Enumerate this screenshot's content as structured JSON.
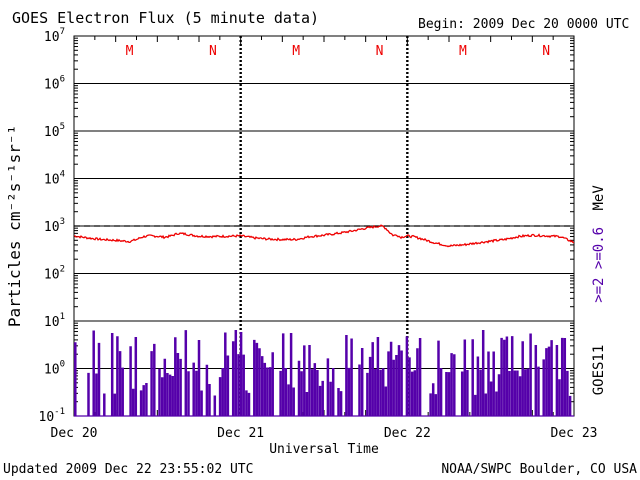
{
  "chart_data": {
    "type": "line",
    "title": "GOES Electron Flux (5 minute data)",
    "begin_label": "Begin: 2009 Dec 20 0000 UTC",
    "xlabel": "Universal Time",
    "ylabel": "Particles cm⁻²s⁻¹sr⁻¹",
    "xlim": [
      "2009-12-20 00:00",
      "2009-12-23 00:00"
    ],
    "x_tick_labels": [
      "Dec 20",
      "Dec 21",
      "Dec 22",
      "Dec 23"
    ],
    "y_scale": "log",
    "ylim": [
      0.1,
      10000000
    ],
    "y_tick_labels": [
      {
        "base": "10",
        "exp": "-1"
      },
      {
        "base": "10",
        "exp": "0"
      },
      {
        "base": "10",
        "exp": "1"
      },
      {
        "base": "10",
        "exp": "2"
      },
      {
        "base": "10",
        "exp": "3"
      },
      {
        "base": "10",
        "exp": "4"
      },
      {
        "base": "10",
        "exp": "5"
      },
      {
        "base": "10",
        "exp": "6"
      },
      {
        "base": "10",
        "exp": "7"
      }
    ],
    "grid": "horizontal at each decade",
    "threshold": {
      "value": 1000,
      "style": "dashed"
    },
    "right_labels": {
      "satellite": "GOES11",
      "energy_prefix": ">=2 >=0.6",
      "energy_unit": "MeV"
    },
    "local_midnight_markers": [
      {
        "label": "M",
        "x": "2009-12-20 08:00"
      },
      {
        "label": "N",
        "x": "2009-12-20 20:00"
      },
      {
        "label": "M",
        "x": "2009-12-21 08:00"
      },
      {
        "label": "N",
        "x": "2009-12-21 20:00"
      },
      {
        "label": "M",
        "x": "2009-12-22 08:00"
      },
      {
        "label": "N",
        "x": "2009-12-22 20:00"
      }
    ],
    "series": [
      {
        "energy": ">=0.6 MeV",
        "color": "#ee0000",
        "x_hours": [
          0,
          2,
          4,
          6,
          8,
          9,
          10,
          11,
          12,
          13,
          14,
          15,
          16,
          17,
          18,
          20,
          22,
          24,
          26,
          28,
          30,
          32,
          34,
          36,
          38,
          40,
          42,
          44,
          44.5,
          45,
          45.5,
          46,
          46.5,
          47,
          48,
          49,
          50,
          52,
          54,
          56,
          58,
          60,
          62,
          64,
          66,
          68,
          70,
          72
        ],
        "values": [
          620,
          560,
          520,
          500,
          470,
          520,
          600,
          620,
          610,
          580,
          620,
          700,
          680,
          640,
          610,
          600,
          610,
          620,
          560,
          530,
          520,
          520,
          600,
          640,
          700,
          780,
          900,
          1000,
          980,
          870,
          720,
          630,
          650,
          580,
          620,
          590,
          540,
          440,
          380,
          400,
          440,
          480,
          520,
          600,
          640,
          620,
          600,
          450
        ]
      },
      {
        "energy": ">=2 MeV",
        "color": "#5500aa",
        "values_note": "spiky background near 0.1 with bursts up to about 6"
      }
    ]
  },
  "footer": {
    "updated": "Updated 2009 Dec 22 23:55:02 UTC",
    "credit": "NOAA/SWPC Boulder, CO USA"
  }
}
